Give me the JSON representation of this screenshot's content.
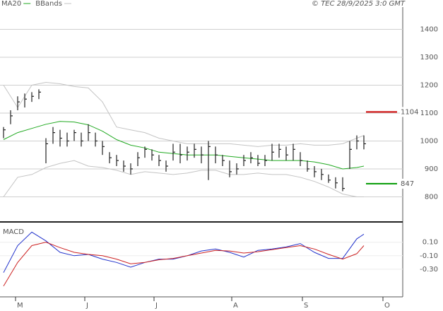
{
  "chart_data": {
    "type": "ohlc",
    "credit": "© TEC 28/9/2025 3:0 GMT",
    "categories": [
      null,
      null,
      null,
      null,
      null,
      null,
      null,
      null,
      null,
      null,
      null,
      null,
      null,
      null,
      null,
      null,
      null,
      null,
      null,
      null,
      null,
      null,
      null,
      null,
      null,
      null,
      null,
      null,
      null,
      null,
      null,
      null,
      null,
      null,
      null,
      null,
      null,
      null,
      null,
      null,
      null,
      null,
      null,
      null,
      null,
      null,
      null,
      null,
      null,
      null,
      null,
      null
    ],
    "xlim": [
      -0.5,
      56.5
    ],
    "xticks": [
      {
        "value": 1.7,
        "label": "M"
      },
      {
        "value": 11.5,
        "label": "J"
      },
      {
        "value": 21.3,
        "label": "J"
      },
      {
        "value": 32.3,
        "label": "A"
      },
      {
        "value": 42.3,
        "label": "S"
      },
      {
        "value": 53.7,
        "label": "O"
      }
    ],
    "ylim": [
      710,
      1505
    ],
    "yticks": [
      800,
      900,
      1000,
      1100,
      1200,
      1300,
      1400
    ],
    "grid": true,
    "bar_color": "#222222",
    "high": [
      1050,
      1110,
      1160,
      1170,
      1175,
      1185,
      1010,
      1050,
      1040,
      1030,
      1040,
      1030,
      1060,
      1030,
      1000,
      960,
      950,
      930,
      920,
      960,
      980,
      970,
      950,
      930,
      990,
      990,
      980,
      990,
      980,
      1000,
      980,
      950,
      930,
      920,
      950,
      960,
      950,
      950,
      990,
      990,
      980,
      990,
      960,
      930,
      910,
      900,
      880,
      870,
      870,
      1000,
      1020,
      1020
    ],
    "low": [
      1010,
      1060,
      1110,
      1120,
      1140,
      1150,
      920,
      990,
      980,
      980,
      1000,
      980,
      1000,
      980,
      950,
      920,
      910,
      890,
      880,
      910,
      940,
      930,
      910,
      890,
      930,
      920,
      930,
      940,
      920,
      860,
      920,
      910,
      870,
      880,
      910,
      920,
      910,
      910,
      930,
      940,
      930,
      930,
      910,
      890,
      870,
      860,
      850,
      830,
      820,
      900,
      970,
      970
    ],
    "close": [
      1040,
      1090,
      1140,
      1150,
      1160,
      1175,
      990,
      1030,
      1010,
      1000,
      1030,
      1000,
      1030,
      1000,
      980,
      940,
      930,
      910,
      900,
      940,
      970,
      950,
      930,
      910,
      960,
      950,
      960,
      970,
      950,
      980,
      950,
      930,
      890,
      900,
      930,
      940,
      920,
      930,
      960,
      970,
      950,
      970,
      930,
      900,
      890,
      880,
      860,
      850,
      830,
      970,
      1000,
      990
    ],
    "line_x": [
      0,
      2,
      4,
      6,
      8,
      10,
      12,
      14,
      16,
      18,
      20,
      22,
      24,
      26,
      28,
      30,
      32,
      34,
      36,
      38,
      40,
      42,
      44,
      46,
      48,
      50,
      51
    ],
    "lines": [
      {
        "name": "MA20",
        "color": "#22aa22",
        "values": [
          1005,
          1030,
          1045,
          1060,
          1070,
          1068,
          1058,
          1035,
          1005,
          985,
          975,
          960,
          955,
          950,
          950,
          950,
          945,
          940,
          935,
          930,
          930,
          930,
          925,
          915,
          900,
          905,
          910
        ]
      },
      {
        "name": "BBands",
        "color": "#c4c4c4",
        "values": [
          1200,
          1120,
          1200,
          1210,
          1205,
          1195,
          1190,
          1140,
          1050,
          1040,
          1030,
          1010,
          1000,
          990,
          990,
          990,
          990,
          985,
          980,
          985,
          985,
          990,
          985,
          985,
          990,
          1010,
          1020
        ]
      },
      {
        "name": null,
        "color": "#c4c4c4",
        "values": [
          800,
          870,
          880,
          905,
          920,
          930,
          910,
          905,
          895,
          880,
          890,
          885,
          880,
          885,
          895,
          895,
          880,
          880,
          885,
          880,
          880,
          870,
          855,
          835,
          810,
          800,
          800
        ]
      }
    ],
    "levels": [
      {
        "value": 1104,
        "color": "#cc0000"
      },
      {
        "value": 847,
        "color": "#009900"
      }
    ],
    "macd": {
      "title": "MACD",
      "ylim": [
        -0.71,
        0.38
      ],
      "yticks": [
        {
          "value": 0.1,
          "label": "0.10"
        },
        {
          "value": -0.1,
          "label": "-0.10"
        },
        {
          "value": -0.3,
          "label": "-0.30"
        }
      ],
      "series": [
        {
          "color": "#2233cc",
          "values": [
            -0.35,
            0.05,
            0.25,
            0.12,
            -0.05,
            -0.1,
            -0.08,
            -0.15,
            -0.2,
            -0.27,
            -0.2,
            -0.15,
            -0.15,
            -0.1,
            -0.03,
            0.0,
            -0.05,
            -0.12,
            -0.02,
            0.0,
            0.03,
            0.08,
            -0.05,
            -0.14,
            -0.14,
            0.15,
            0.22
          ]
        },
        {
          "color": "#cc2222",
          "values": [
            -0.55,
            -0.2,
            0.05,
            0.1,
            0.02,
            -0.05,
            -0.08,
            -0.1,
            -0.15,
            -0.22,
            -0.2,
            -0.16,
            -0.14,
            -0.1,
            -0.06,
            -0.02,
            -0.03,
            -0.06,
            -0.04,
            -0.01,
            0.02,
            0.05,
            0.0,
            -0.08,
            -0.15,
            -0.07,
            0.05
          ]
        }
      ]
    }
  }
}
